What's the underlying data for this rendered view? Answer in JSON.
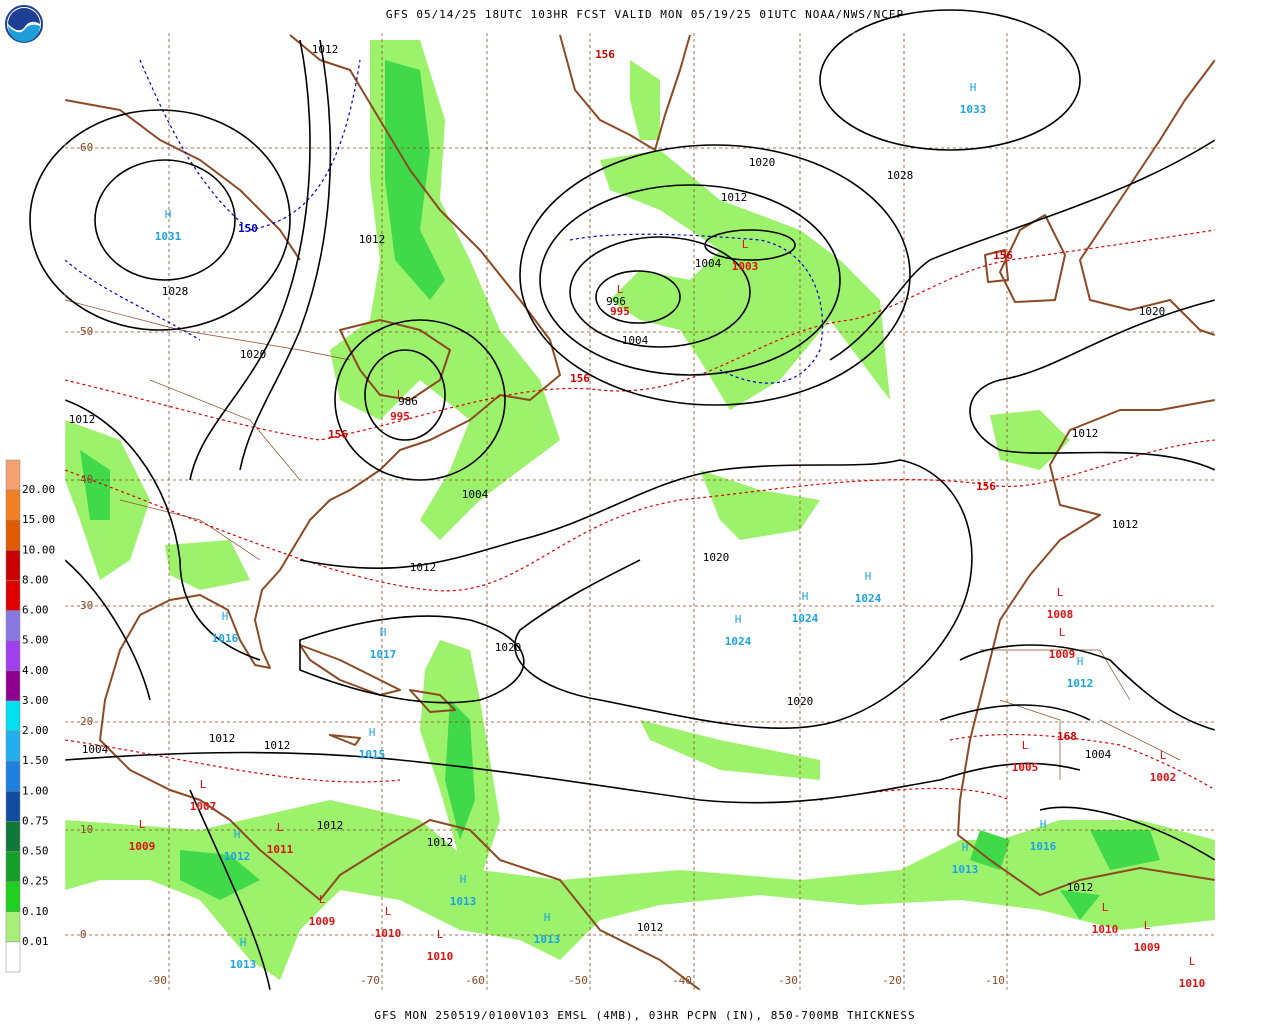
{
  "header": {
    "title": "GFS 05/14/25 18UTC 103HR FCST VALID MON 05/19/25 01UTC NOAA/NWS/NCEP"
  },
  "footer": {
    "caption": "GFS MON 250519/0100V103 EMSL (4MB), 03HR PCPN (IN), 850-700MB THICKNESS"
  },
  "legend": {
    "labels": [
      "20.00",
      "15.00",
      "10.00",
      "8.00",
      "6.00",
      "5.00",
      "4.00",
      "3.00",
      "2.00",
      "1.50",
      "1.00",
      "0.75",
      "0.50",
      "0.25",
      "0.10",
      "0.01"
    ]
  },
  "map": {
    "latitude_labels": [
      "60",
      "50",
      "40",
      "30",
      "20",
      "10",
      "0"
    ],
    "longitude_labels": [
      "-90",
      "-70",
      "-60",
      "-50",
      "-40",
      "-30",
      "-20",
      "-10"
    ],
    "pressure_centers": [
      {
        "letter": "H",
        "value": "1033"
      },
      {
        "letter": "H",
        "value": "1031"
      },
      {
        "letter": "L",
        "value": "995"
      },
      {
        "letter": "L",
        "value": "1003"
      },
      {
        "letter": "L",
        "value": "995"
      },
      {
        "letter": "H",
        "value": "1016"
      },
      {
        "letter": "H",
        "value": "1017"
      },
      {
        "letter": "H",
        "value": "1024"
      },
      {
        "letter": "H",
        "value": "1024"
      },
      {
        "letter": "H",
        "value": "1024"
      },
      {
        "letter": "H",
        "value": "1015"
      },
      {
        "letter": "L",
        "value": "1007"
      },
      {
        "letter": "L",
        "value": "1009"
      },
      {
        "letter": "H",
        "value": "1012"
      },
      {
        "letter": "L",
        "value": "1011"
      },
      {
        "letter": "L",
        "value": "1009"
      },
      {
        "letter": "L",
        "value": "1010"
      },
      {
        "letter": "L",
        "value": "1010"
      },
      {
        "letter": "H",
        "value": "1013"
      },
      {
        "letter": "H",
        "value": "1013"
      },
      {
        "letter": "H",
        "value": "1013"
      },
      {
        "letter": "L",
        "value": "1008"
      },
      {
        "letter": "L",
        "value": "1009"
      },
      {
        "letter": "H",
        "value": "1012"
      },
      {
        "letter": "L",
        "value": "1005"
      },
      {
        "letter": "L",
        "value": "1002"
      },
      {
        "letter": "L",
        "value": "1010"
      },
      {
        "letter": "L",
        "value": "1009"
      },
      {
        "letter": "L",
        "value": "1010"
      },
      {
        "letter": "H",
        "value": "1016"
      },
      {
        "letter": "H",
        "value": "1013"
      }
    ],
    "isobar_labels": [
      "1012",
      "1028",
      "1020",
      "1012",
      "1012",
      "1020",
      "1028",
      "1012",
      "1004",
      "996",
      "1004",
      "986",
      "1004",
      "1012",
      "1020",
      "1020",
      "1020",
      "1012",
      "1020",
      "1012",
      "1012",
      "1012",
      "1004",
      "1012",
      "1004",
      "1012",
      "1012",
      "1012"
    ],
    "thickness_labels": [
      "156",
      "156",
      "156",
      "156",
      "156",
      "168",
      "150"
    ]
  }
}
